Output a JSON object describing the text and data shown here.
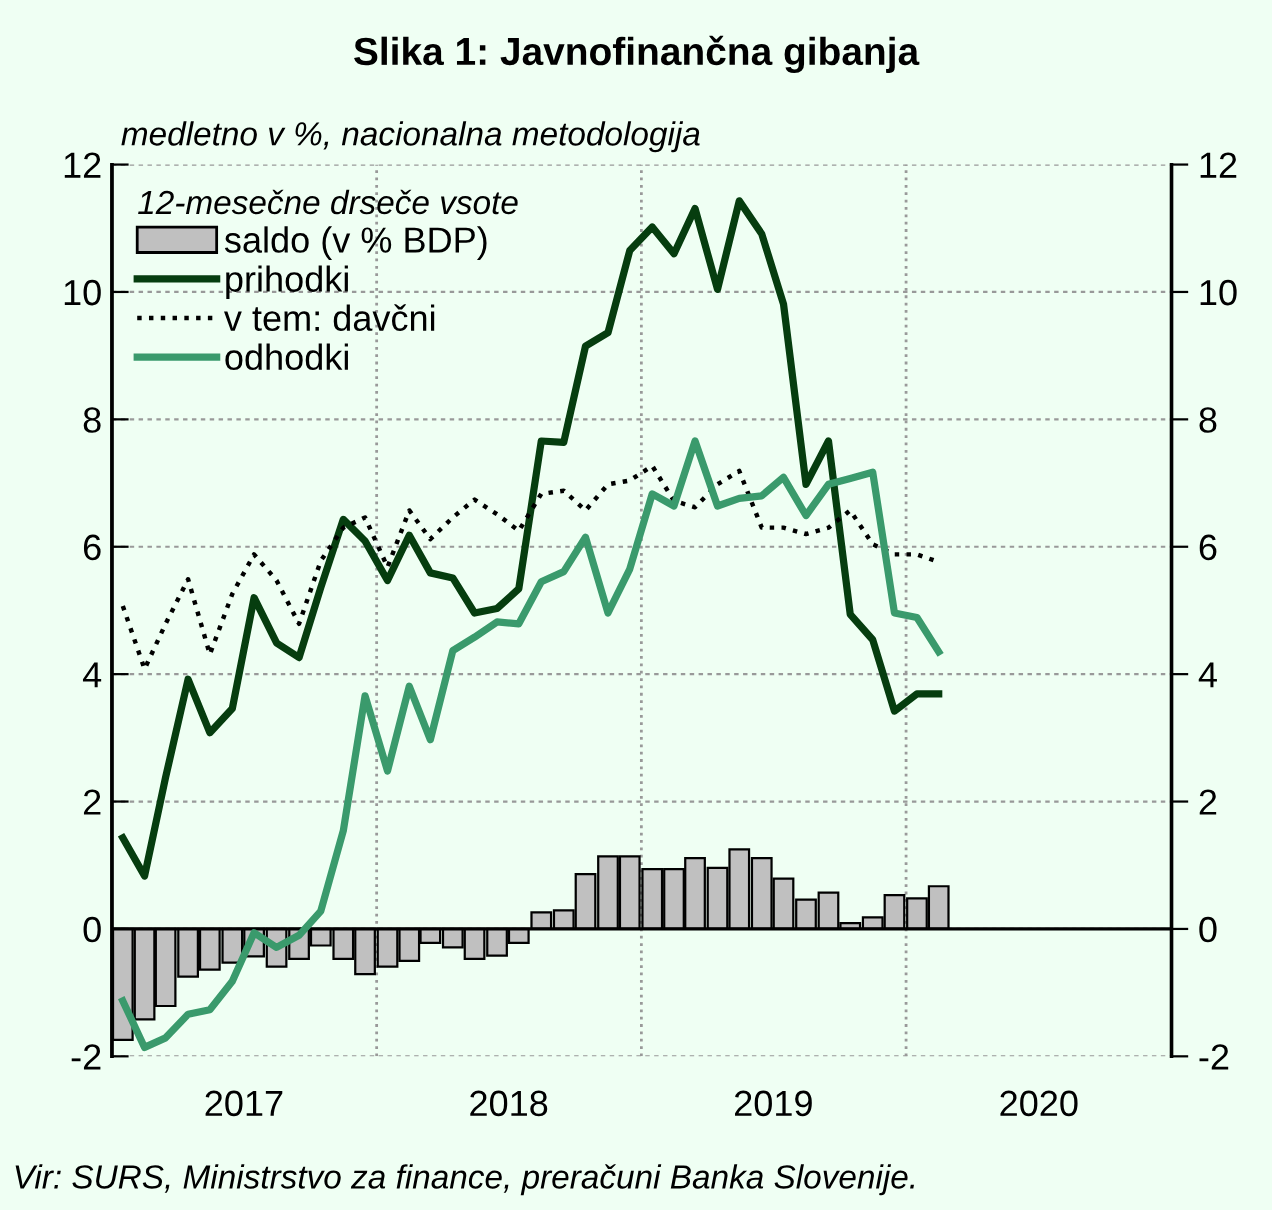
{
  "chart_data": {
    "type": "bar",
    "title": "Slika 1: Javnofinančna gibanja",
    "subtitle": "medletno v %, nacionalna metodologija",
    "legend_title": "12-mesečne drseče vsote",
    "annotations": [
      "Vir: SURS, Ministrstvo za finance, preračuni Banka Slovenije."
    ],
    "x": [
      "2017-01-16",
      "2017-02-15",
      "2017-03-16",
      "2017-04-16",
      "2017-05-16",
      "2017-06-16",
      "2017-07-16",
      "2017-08-16",
      "2017-09-16",
      "2017-10-16",
      "2017-11-16",
      "2017-12-16",
      "2018-01-16",
      "2018-02-15",
      "2018-03-16",
      "2018-04-16",
      "2018-05-16",
      "2018-06-16",
      "2018-07-16",
      "2018-08-16",
      "2018-09-16",
      "2018-10-16",
      "2018-11-16",
      "2018-12-16",
      "2019-01-16",
      "2019-02-15",
      "2019-03-16",
      "2019-04-16",
      "2019-05-16",
      "2019-06-16",
      "2019-07-16",
      "2019-08-16",
      "2019-09-16",
      "2019-10-16",
      "2019-11-16",
      "2019-12-16",
      "2020-01-16",
      "2020-02-15"
    ],
    "series": [
      {
        "name": "saldo (v % BDP)",
        "color": "#c0c0c0",
        "values": [
          -1.74,
          -1.42,
          -1.21,
          -0.75,
          -0.64,
          -0.53,
          -0.43,
          -0.59,
          -0.47,
          -0.26,
          -0.47,
          -0.71,
          -0.59,
          -0.5,
          -0.22,
          -0.29,
          -0.47,
          -0.42,
          -0.22,
          0.26,
          0.29,
          0.86,
          1.14,
          1.14,
          0.94,
          0.94,
          1.11,
          0.96,
          1.25,
          1.11,
          0.79,
          0.46,
          0.57,
          0.09,
          0.18,
          0.53,
          0.48,
          0.67
        ]
      },
      {
        "name": "prihodki",
        "type": "line",
        "color": "#063d0f",
        "line_style": "solid",
        "values": [
          1.43,
          0.83,
          2.38,
          3.92,
          3.08,
          3.46,
          5.2,
          4.49,
          4.26,
          5.36,
          6.43,
          6.09,
          5.47,
          6.18,
          5.59,
          5.51,
          4.96,
          5.03,
          5.34,
          7.66,
          7.64,
          9.15,
          9.36,
          10.65,
          11.02,
          10.6,
          11.31,
          10.04,
          11.43,
          10.91,
          9.81,
          6.98,
          7.66,
          4.94,
          4.54,
          3.42,
          3.69,
          3.69
        ]
      },
      {
        "name": "v tem: davčni",
        "type": "line",
        "color": "#000000",
        "line_style": "dotted",
        "values": [
          5.07,
          4.08,
          4.79,
          5.49,
          4.31,
          5.26,
          5.88,
          5.47,
          4.79,
          5.78,
          6.3,
          6.46,
          5.68,
          6.57,
          6.12,
          6.46,
          6.74,
          6.51,
          6.25,
          6.83,
          6.88,
          6.57,
          6.98,
          7.04,
          7.27,
          6.72,
          6.62,
          6.98,
          7.19,
          6.3,
          6.3,
          6.2,
          6.3,
          6.57,
          6.04,
          5.88,
          5.88,
          5.76
        ]
      },
      {
        "name": "odhodki",
        "type": "line",
        "color": "#3a9a6c",
        "line_style": "solid",
        "values": [
          -1.13,
          -1.86,
          -1.71,
          -1.34,
          -1.27,
          -0.82,
          -0.06,
          -0.29,
          -0.1,
          0.28,
          1.54,
          3.66,
          2.48,
          3.81,
          2.97,
          4.37,
          4.58,
          4.82,
          4.79,
          5.45,
          5.61,
          6.15,
          4.96,
          5.65,
          6.83,
          6.64,
          7.66,
          6.64,
          6.76,
          6.8,
          7.09,
          6.49,
          6.98,
          7.07,
          7.17,
          4.96,
          4.89,
          4.35
        ]
      }
    ],
    "xlim": [
      "2017-01-01",
      "2021-01-01"
    ],
    "xticks": [
      {
        "value": "2017-07-02",
        "label": "2017"
      },
      {
        "value": "2018-07-02",
        "label": "2018"
      },
      {
        "value": "2019-07-02",
        "label": "2019"
      },
      {
        "value": "2020-07-02",
        "label": "2020"
      }
    ],
    "ylim": [
      -2,
      12
    ],
    "yticks": [
      -2,
      0,
      2,
      4,
      6,
      8,
      10,
      12
    ],
    "y2lim": [
      -2,
      12
    ],
    "y2ticks": [
      -2,
      0,
      2,
      4,
      6,
      8,
      10,
      12
    ],
    "ref_lines": [
      {
        "axis": "y",
        "value": 0,
        "color": "#000000",
        "line_style": "solid"
      },
      {
        "axis": "x",
        "value": "2018-01-01",
        "color": "#999999",
        "line_style": "dotted"
      },
      {
        "axis": "x",
        "value": "2019-01-01",
        "color": "#999999",
        "line_style": "dotted"
      },
      {
        "axis": "x",
        "value": "2020-01-01",
        "color": "#999999",
        "line_style": "dotted"
      }
    ],
    "grid": "y",
    "legend": "top left"
  }
}
